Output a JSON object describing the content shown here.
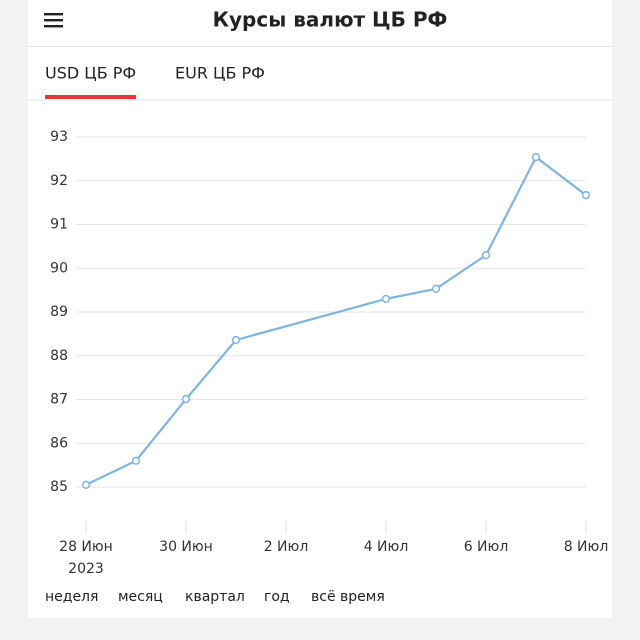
{
  "header": {
    "title": "Курсы валют ЦБ РФ"
  },
  "tabs": [
    "USD ЦБ РФ",
    "EUR ЦБ РФ"
  ],
  "chart_data": {
    "type": "line",
    "x": [
      "2023-06-28",
      "2023-06-29",
      "2023-06-30",
      "2023-07-01",
      "2023-07-04",
      "2023-07-05",
      "2023-07-06",
      "2023-07-07",
      "2023-07-08"
    ],
    "values": [
      85.05,
      85.6,
      87.01,
      88.36,
      89.3,
      89.53,
      90.3,
      92.54,
      91.67
    ],
    "color": "#80b4e0",
    "xlim": [
      "2023-06-28",
      "2023-07-08"
    ],
    "xticks": [
      {
        "value": "2023-06-28",
        "label": "28 Июн"
      },
      {
        "value": "2023-06-30",
        "label": "30 Июн"
      },
      {
        "value": "2023-07-02",
        "label": "2 Июл"
      },
      {
        "value": "2023-07-04",
        "label": "4 Июл"
      },
      {
        "value": "2023-07-06",
        "label": "6 Июл"
      },
      {
        "value": "2023-07-08",
        "label": "8 Июл"
      }
    ],
    "x_year_label": "2023",
    "ylim": [
      84.25,
      93.25
    ],
    "yticks": [
      85,
      86,
      87,
      88,
      89,
      90,
      91,
      92,
      93
    ],
    "grid": true
  },
  "periods": [
    "неделя",
    "месяц",
    "квартал",
    "год",
    "всё время"
  ]
}
